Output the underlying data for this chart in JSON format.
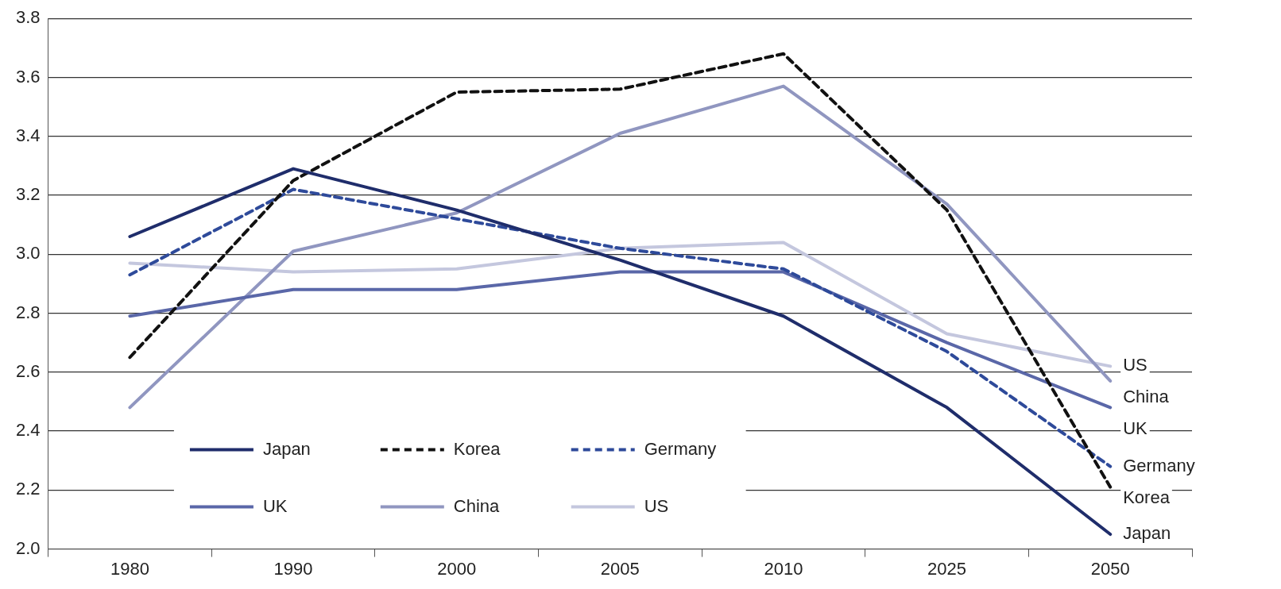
{
  "chart_data": {
    "type": "line",
    "categories": [
      "1980",
      "1990",
      "2000",
      "2005",
      "2010",
      "2025",
      "2050"
    ],
    "series": [
      {
        "name": "Japan",
        "color": "#1f2d6b",
        "line_style": "solid",
        "values": [
          3.06,
          3.29,
          3.15,
          2.98,
          2.79,
          2.48,
          2.05
        ]
      },
      {
        "name": "Korea",
        "color": "#111111",
        "line_style": "dashed",
        "values": [
          2.65,
          3.25,
          3.55,
          3.56,
          3.68,
          3.15,
          2.21
        ]
      },
      {
        "name": "Germany",
        "color": "#2e4a9a",
        "line_style": "dashed",
        "values": [
          2.93,
          3.22,
          3.12,
          3.02,
          2.95,
          2.67,
          2.28
        ]
      },
      {
        "name": "UK",
        "color": "#5a67a8",
        "line_style": "solid",
        "values": [
          2.79,
          2.88,
          2.88,
          2.94,
          2.94,
          2.7,
          2.48
        ]
      },
      {
        "name": "China",
        "color": "#9096c0",
        "line_style": "solid",
        "values": [
          2.48,
          3.01,
          3.14,
          3.41,
          3.57,
          3.17,
          2.57
        ]
      },
      {
        "name": "US",
        "color": "#c4c7de",
        "line_style": "solid",
        "values": [
          2.97,
          2.94,
          2.95,
          3.02,
          3.04,
          2.73,
          2.62
        ]
      }
    ],
    "ylim": [
      2.0,
      3.8
    ],
    "yticks": [
      {
        "value": 2.0,
        "label": "2.0"
      },
      {
        "value": 2.2,
        "label": "2.2"
      },
      {
        "value": 2.4,
        "label": "2.4"
      },
      {
        "value": 2.6,
        "label": "2.6"
      },
      {
        "value": 2.8,
        "label": "2.8"
      },
      {
        "value": 3.0,
        "label": "3.0"
      },
      {
        "value": 3.2,
        "label": "3.2"
      },
      {
        "value": 3.4,
        "label": "3.4"
      },
      {
        "value": 3.6,
        "label": "3.6"
      },
      {
        "value": 3.8,
        "label": "3.8"
      }
    ],
    "grid": "y",
    "legend": "bottom left",
    "marker": "none"
  }
}
